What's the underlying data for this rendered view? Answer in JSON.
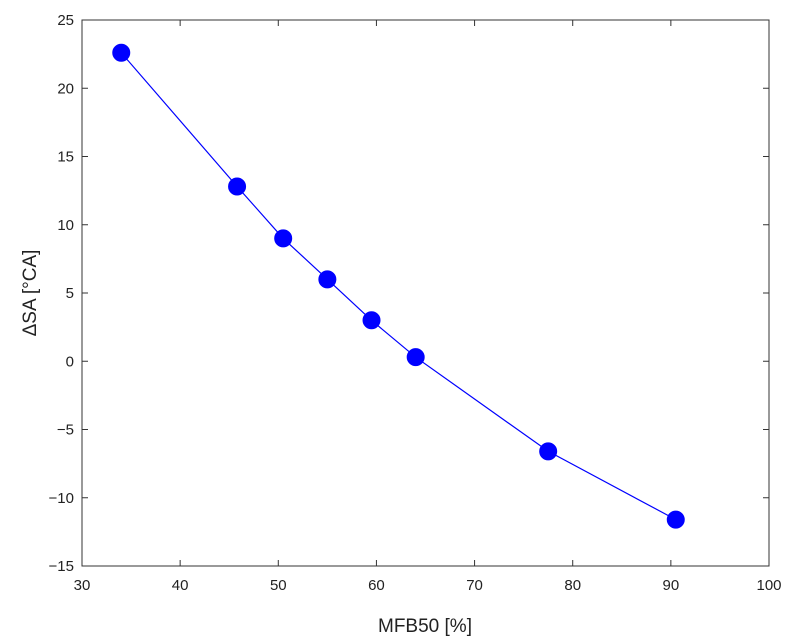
{
  "chart_data": {
    "type": "line",
    "title": "",
    "xlabel": "MFB50 [%]",
    "ylabel": "ΔSA [°CA]",
    "xlim": [
      30,
      100
    ],
    "ylim": [
      -15,
      25
    ],
    "xticks": [
      "30",
      "40",
      "50",
      "60",
      "70",
      "80",
      "90",
      "100"
    ],
    "yticks": [
      "25",
      "20",
      "15",
      "10",
      "5",
      "0",
      "−5",
      "−10",
      "−15"
    ],
    "grid": false,
    "legend": "none",
    "series": [
      {
        "color": "#0000ff",
        "marker": "circle",
        "x": [
          34.0,
          45.8,
          50.5,
          55.0,
          59.5,
          64.0,
          77.5,
          90.5
        ],
        "y": [
          22.6,
          12.8,
          9.0,
          6.0,
          3.0,
          0.3,
          -6.6,
          -11.6
        ]
      }
    ]
  }
}
